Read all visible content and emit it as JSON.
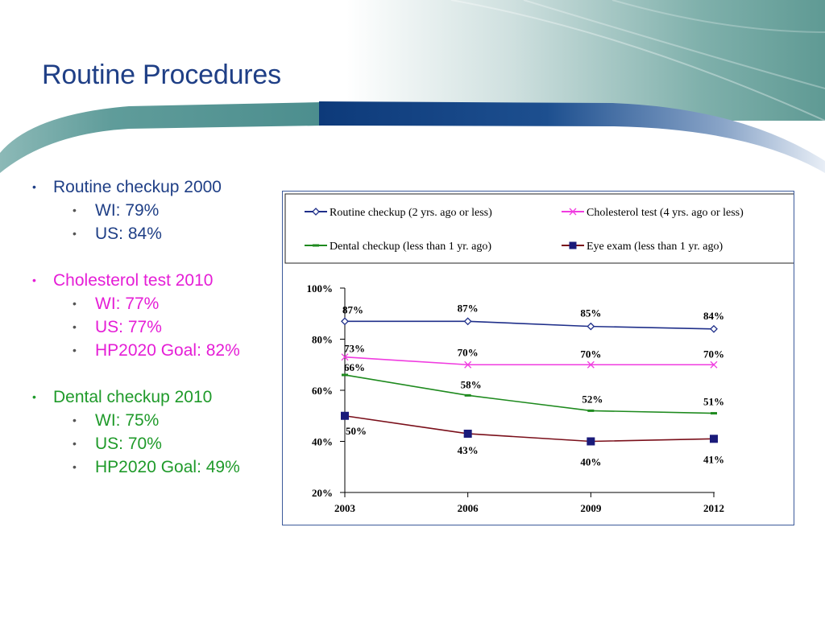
{
  "slide": {
    "title": "Routine Procedures"
  },
  "bullets": [
    {
      "heading": "Routine checkup 2000",
      "color": "#1f3f86",
      "items": [
        "WI: 79%",
        "US: 84%"
      ]
    },
    {
      "heading": "Cholesterol test 2010",
      "color": "#e51ed6",
      "items": [
        "WI: 77%",
        "US: 77%",
        "HP2020 Goal: 82%"
      ]
    },
    {
      "heading": "Dental checkup 2010",
      "color": "#1f9a2a",
      "items": [
        "WI: 75%",
        "US: 70%",
        "HP2020 Goal: 49%"
      ]
    }
  ],
  "colors": {
    "title": "#1f3f86",
    "banner_teal": "#4f9194",
    "banner_navy": "#0e3c7c"
  },
  "chart_data": {
    "type": "line",
    "x": [
      "2003",
      "2006",
      "2009",
      "2012"
    ],
    "ylim": [
      20,
      100
    ],
    "yticks": [
      20,
      40,
      60,
      80,
      100
    ],
    "ytick_labels": [
      "20%",
      "40%",
      "60%",
      "80%",
      "100%"
    ],
    "grid": false,
    "legend_position": "top",
    "series": [
      {
        "name": "Routine checkup (2 yrs. ago or less)",
        "values": [
          87,
          87,
          85,
          84
        ],
        "labels": [
          "87%",
          "87%",
          "85%",
          "84%"
        ],
        "color": "#1f2f8a",
        "marker": "diamond-open"
      },
      {
        "name": "Cholesterol test (4 yrs. ago or less)",
        "values": [
          73,
          70,
          70,
          70
        ],
        "labels": [
          "73%",
          "70%",
          "70%",
          "70%"
        ],
        "color": "#f03ce0",
        "marker": "x"
      },
      {
        "name": "Dental checkup (less than 1 yr. ago)",
        "values": [
          66,
          58,
          52,
          51
        ],
        "labels": [
          "66%",
          "58%",
          "52%",
          "51%"
        ],
        "color": "#1e8a1e",
        "marker": "dash"
      },
      {
        "name": "Eye exam (less than 1 yr. ago)",
        "values": [
          50,
          43,
          40,
          41
        ],
        "labels": [
          "50%",
          "43%",
          "40%",
          "41%"
        ],
        "color": "#7a0f1a",
        "marker": "square",
        "marker_fill": "#1a1a7a"
      }
    ]
  }
}
